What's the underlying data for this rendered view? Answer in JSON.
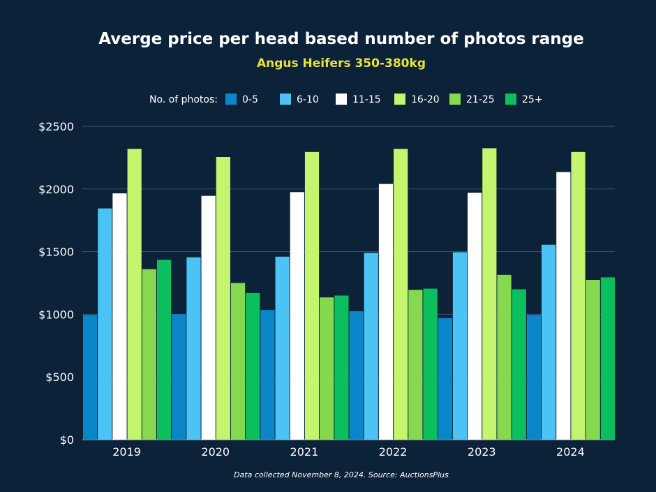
{
  "chart_data": {
    "type": "bar",
    "title": "Averge price per head based number of photos range",
    "subtitle": "Angus Heifers 350-380kg",
    "legend_title": "No. of photos:",
    "legend_position": "top",
    "footnote": "Data collected November 8, 2024. Source: AuctionsPlus",
    "categories": [
      "2019",
      "2020",
      "2021",
      "2022",
      "2023",
      "2024"
    ],
    "ylim": [
      0,
      2500
    ],
    "yticks": [
      0,
      500,
      1000,
      1500,
      2000,
      2500
    ],
    "ytick_labels": [
      "$0",
      "$500",
      "$1000",
      "$1500",
      "$2000",
      "$2500"
    ],
    "grid": true,
    "series": [
      {
        "name": "0-5",
        "color": "#0b86c9",
        "values": [
          995,
          1000,
          1035,
          1025,
          970,
          995
        ]
      },
      {
        "name": "6-10",
        "color": "#4cc3f5",
        "values": [
          1845,
          1455,
          1460,
          1490,
          1495,
          1555
        ]
      },
      {
        "name": "11-15",
        "color": "#ffffff",
        "values": [
          1965,
          1945,
          1975,
          2040,
          1970,
          2135
        ]
      },
      {
        "name": "16-20",
        "color": "#c3f56e",
        "values": [
          2320,
          2255,
          2295,
          2320,
          2325,
          2295
        ]
      },
      {
        "name": "21-25",
        "color": "#86d94f",
        "values": [
          1360,
          1250,
          1135,
          1195,
          1315,
          1275
        ]
      },
      {
        "name": "25+",
        "color": "#0bbf5f",
        "values": [
          1435,
          1170,
          1150,
          1205,
          1200,
          1295
        ]
      }
    ]
  }
}
